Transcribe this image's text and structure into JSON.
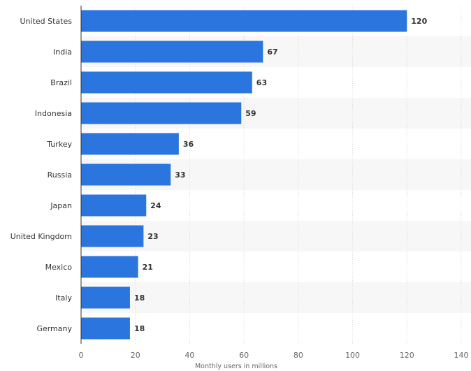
{
  "chart_data": {
    "type": "bar",
    "orientation": "horizontal",
    "categories": [
      "United States",
      "India",
      "Brazil",
      "Indonesia",
      "Turkey",
      "Russia",
      "Japan",
      "United Kingdom",
      "Mexico",
      "Italy",
      "Germany"
    ],
    "values": [
      120,
      67,
      63,
      59,
      36,
      33,
      24,
      23,
      21,
      18,
      18
    ],
    "title": "",
    "xlabel": "Monthly users in millions",
    "ylabel": "",
    "xlim": [
      0,
      140
    ],
    "xticks": [
      0,
      20,
      40,
      60,
      80,
      100,
      120,
      140
    ],
    "grid": true,
    "data_labels": true,
    "colors": {
      "bar": "#2a75de",
      "band": "#f7f7f7",
      "grid": "#d8d8d8"
    }
  }
}
